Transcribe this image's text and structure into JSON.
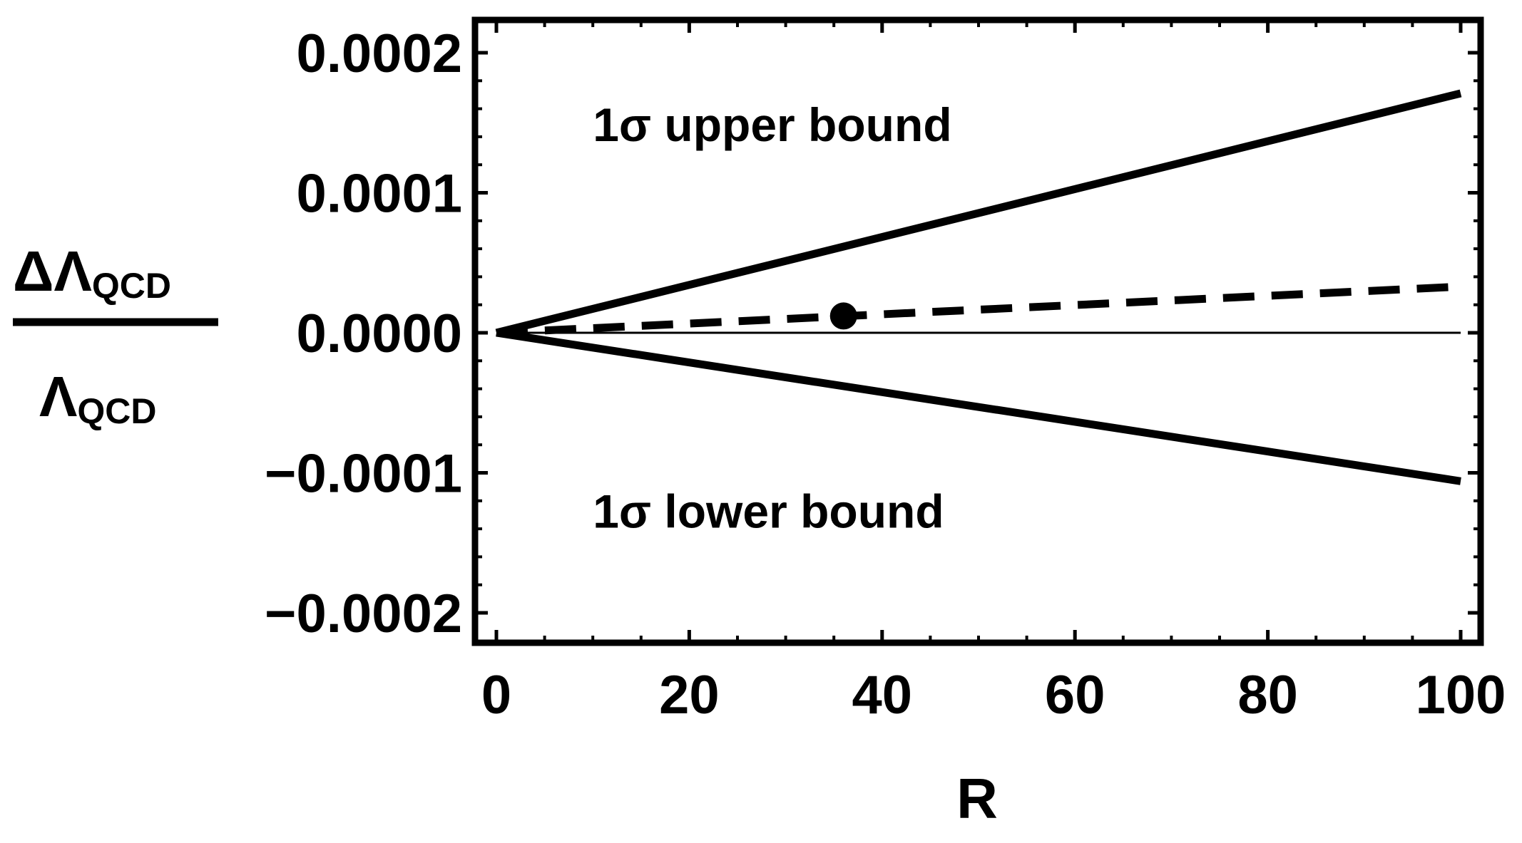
{
  "chart_data": {
    "type": "line",
    "xlabel": "R",
    "ylabel": {
      "numerator": "ΔΛ",
      "numerator_sub": "QCD",
      "denominator": "Λ",
      "denominator_sub": "QCD"
    },
    "xlim": [
      0,
      100
    ],
    "ylim": [
      -0.00022,
      0.00022
    ],
    "x_ticks": [
      0,
      20,
      40,
      60,
      80,
      100
    ],
    "x_tick_labels": [
      "0",
      "20",
      "40",
      "60",
      "80",
      "100"
    ],
    "y_ticks": [
      0.0002,
      0.0001,
      0,
      -0.0001,
      -0.0002
    ],
    "y_tick_labels": [
      "0.0002",
      "0.0001",
      "0.0000",
      "−0.0001",
      "−0.0002"
    ],
    "grid": false,
    "series": [
      {
        "style": "solid",
        "x": [
          0,
          100
        ],
        "y": [
          0,
          0.000171
        ]
      },
      {
        "style": "solid",
        "x": [
          0,
          100
        ],
        "y": [
          0,
          -0.000106
        ]
      },
      {
        "style": "dashed",
        "x": [
          0,
          100
        ],
        "y": [
          0,
          3.3e-05
        ]
      },
      {
        "style": "thin",
        "x": [
          0,
          100
        ],
        "y": [
          0,
          0
        ]
      }
    ],
    "points": [
      {
        "x": 36,
        "y": 1.2e-05
      }
    ],
    "annotations": [
      {
        "text": "1σ upper bound",
        "x": 10,
        "y": 0.000148
      },
      {
        "text": "1σ lower bound",
        "x": 10,
        "y": -0.000128
      }
    ]
  }
}
